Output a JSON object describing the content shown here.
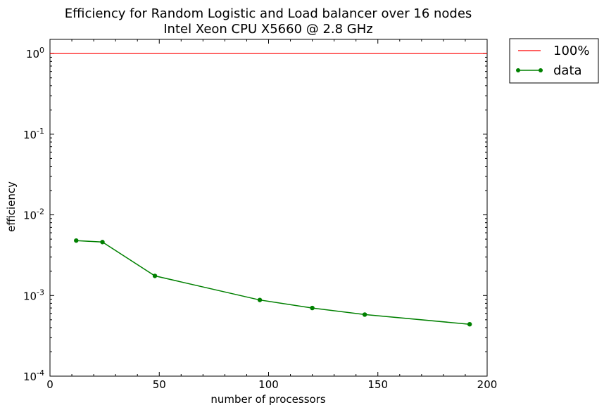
{
  "chart_data": {
    "type": "line",
    "title": "Efficiency for Random Logistic and Load balancer over 16 nodes",
    "subtitle": "Intel Xeon CPU X5660 @ 2.8 GHz",
    "xlabel": "number of processors",
    "ylabel": "efficiency",
    "xlim": [
      0,
      200
    ],
    "ylim": [
      0.0001,
      1.5
    ],
    "yscale": "log",
    "grid": false,
    "legend_position": "outside-top-right",
    "x_ticks": [
      {
        "value": 0,
        "label": "0"
      },
      {
        "value": 50,
        "label": "50"
      },
      {
        "value": 100,
        "label": "100"
      },
      {
        "value": 150,
        "label": "150"
      },
      {
        "value": 200,
        "label": "200"
      }
    ],
    "y_ticks": [
      {
        "value": 0.0001,
        "base": "10",
        "exp": "-4"
      },
      {
        "value": 0.001,
        "base": "10",
        "exp": "-3"
      },
      {
        "value": 0.01,
        "base": "10",
        "exp": "-2"
      },
      {
        "value": 0.1,
        "base": "10",
        "exp": "-1"
      },
      {
        "value": 1,
        "base": "10",
        "exp": "0"
      }
    ],
    "series": [
      {
        "name": "100%",
        "color": "#ff0000",
        "marker": "none",
        "x": [
          0,
          200
        ],
        "y": [
          1,
          1
        ]
      },
      {
        "name": "data",
        "color": "#008000",
        "marker": "circle",
        "x": [
          12,
          24,
          48,
          96,
          120,
          144,
          192
        ],
        "y": [
          0.0048,
          0.0046,
          0.00175,
          0.00088,
          0.0007,
          0.00058,
          0.00044
        ]
      }
    ]
  }
}
